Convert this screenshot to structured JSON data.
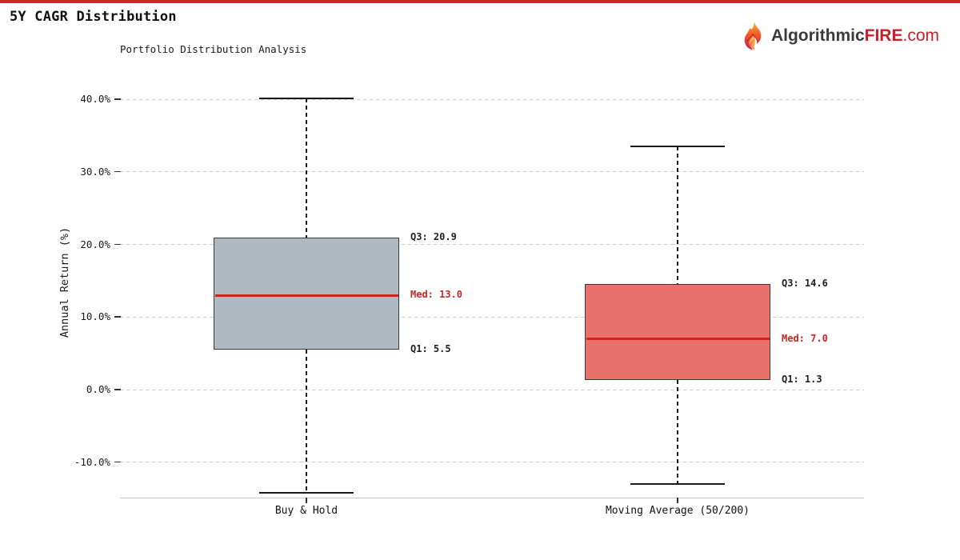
{
  "page": {
    "accent_red": "#c42a22",
    "background": "#ffffff"
  },
  "header": {
    "title": "5Y CAGR Distribution"
  },
  "logo": {
    "brand": "Algorithmic",
    "brand_accent": "FIRE",
    "brand_suffix": ".com",
    "accent_color": "#c8202a",
    "text_color": "#3b3b3b",
    "flame_icon": "flame-icon"
  },
  "chart_data": {
    "type": "box",
    "title": "Portfolio Distribution Analysis",
    "ylabel": "Annual Return (%)",
    "categories": [
      "Buy & Hold",
      "Moving Average (50/200)"
    ],
    "series": [
      {
        "name": "Buy & Hold",
        "whisker_low": -14.2,
        "q1": 5.5,
        "median": 13.0,
        "q3": 20.9,
        "whisker_high": 40.1,
        "box_color": "#aeb9c2"
      },
      {
        "name": "Moving Average (50/200)",
        "whisker_low": -13.0,
        "q1": 1.3,
        "median": 7.0,
        "q3": 14.6,
        "whisker_high": 33.5,
        "box_color": "#e8716b"
      }
    ],
    "median_color": "#cc2420",
    "box_border_color": "#3a3a3a",
    "whisker_color": "#1a1a1a",
    "annotations": {
      "q3_prefix": "Q3: ",
      "med_prefix": "Med: ",
      "q1_prefix": "Q1: "
    },
    "yticks": [
      {
        "value": 40,
        "label": "40.0%"
      },
      {
        "value": 30,
        "label": "30.0%"
      },
      {
        "value": 20,
        "label": "20.0%"
      },
      {
        "value": 10,
        "label": "10.0%"
      },
      {
        "value": 0,
        "label": "0.0%"
      },
      {
        "value": -10,
        "label": "-10.0%"
      }
    ],
    "ylim": [
      -15,
      42.5
    ],
    "grid": "horizontal-dashed",
    "legend": "none"
  }
}
